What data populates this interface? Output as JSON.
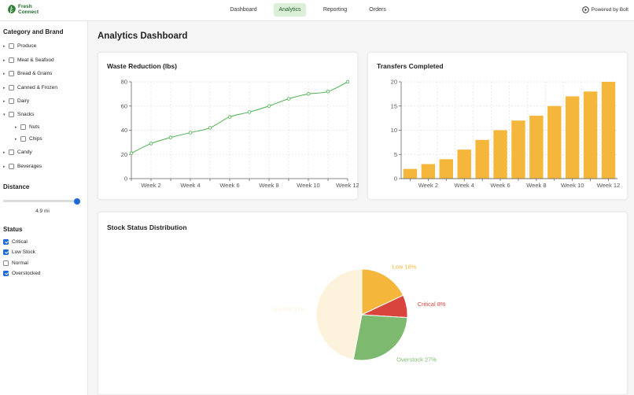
{
  "app": {
    "logo_line1": "Fresh",
    "logo_line2": "Connect",
    "powered_by": "Powered by Bolt"
  },
  "nav": [
    {
      "label": "Dashboard",
      "active": false
    },
    {
      "label": "Analytics",
      "active": true
    },
    {
      "label": "Reporting",
      "active": false
    },
    {
      "label": "Orders",
      "active": false
    }
  ],
  "sidebar": {
    "category_heading": "Category and Brand",
    "categories": [
      {
        "label": "Produce",
        "checked": false,
        "expandable": true
      },
      {
        "label": "Meat & Seafood",
        "checked": false,
        "expandable": true
      },
      {
        "label": "Bread & Grains",
        "checked": false,
        "expandable": true
      },
      {
        "label": "Canned & Frozen",
        "checked": false,
        "expandable": true
      },
      {
        "label": "Dairy",
        "checked": false,
        "expandable": true
      },
      {
        "label": "Snacks",
        "checked": false,
        "expandable": true,
        "expanded": true
      },
      {
        "label": "Nuts",
        "checked": false,
        "expandable": true,
        "child": true
      },
      {
        "label": "Chips",
        "checked": false,
        "expandable": true,
        "child": true
      },
      {
        "label": "Candy",
        "checked": false,
        "expandable": true
      },
      {
        "label": "Beverages",
        "checked": false,
        "expandable": true
      }
    ],
    "distance_heading": "Distance",
    "distance_value": "4.9 mi",
    "distance_fraction": 0.98,
    "status_heading": "Status",
    "statuses": [
      {
        "label": "Critical",
        "checked": true
      },
      {
        "label": "Low Stock",
        "checked": true
      },
      {
        "label": "Normal",
        "checked": false
      },
      {
        "label": "Overstocked",
        "checked": true
      }
    ]
  },
  "main": {
    "title": "Analytics Dashboard"
  },
  "colors": {
    "line": "#4caf50",
    "bar": "#f5b73b",
    "critical": "#d9443c",
    "low": "#f5b73b",
    "overstock": "#7dba6f",
    "normal": "#fdf3dc"
  },
  "chart_data": [
    {
      "type": "line",
      "title": "Waste Reduction (lbs)",
      "x": [
        "Week 1",
        "Week 2",
        "Week 3",
        "Week 4",
        "Week 5",
        "Week 6",
        "Week 7",
        "Week 8",
        "Week 9",
        "Week 10",
        "Week 11",
        "Week 12"
      ],
      "tick_labels": [
        "Week 2",
        "Week 4",
        "Week 6",
        "Week 8",
        "Week 10",
        "Week 12"
      ],
      "values": [
        21,
        29,
        34,
        38,
        42,
        51,
        55,
        60,
        66,
        70,
        72,
        80
      ],
      "ylim": [
        0,
        80
      ],
      "yticks": [
        0,
        20,
        40,
        60,
        80
      ],
      "grid": true
    },
    {
      "type": "bar",
      "title": "Transfers Completed",
      "categories": [
        "Week 1",
        "Week 2",
        "Week 3",
        "Week 4",
        "Week 5",
        "Week 6",
        "Week 7",
        "Week 8",
        "Week 9",
        "Week 10",
        "Week 11",
        "Week 12"
      ],
      "tick_labels": [
        "Week 2",
        "Week 4",
        "Week 6",
        "Week 8",
        "Week 10",
        "Week 12"
      ],
      "values": [
        2,
        3,
        4,
        6,
        8,
        10,
        12,
        13,
        15,
        17,
        18,
        20
      ],
      "ylim": [
        0,
        20
      ],
      "yticks": [
        0,
        5,
        10,
        15,
        20
      ],
      "grid": true
    },
    {
      "type": "pie",
      "title": "Stock Status Distribution",
      "slices": [
        {
          "label": "Low",
          "value": 18,
          "display": "Low 18%",
          "color": "#f5b73b"
        },
        {
          "label": "Critical",
          "value": 8,
          "display": "Critical 8%",
          "color": "#d9443c"
        },
        {
          "label": "Overstock",
          "value": 27,
          "display": "Overstock 27%",
          "color": "#7dba6f"
        },
        {
          "label": "Normal",
          "value": 47,
          "display": "Normal 47%",
          "color": "#fdf3dc"
        }
      ]
    }
  ]
}
